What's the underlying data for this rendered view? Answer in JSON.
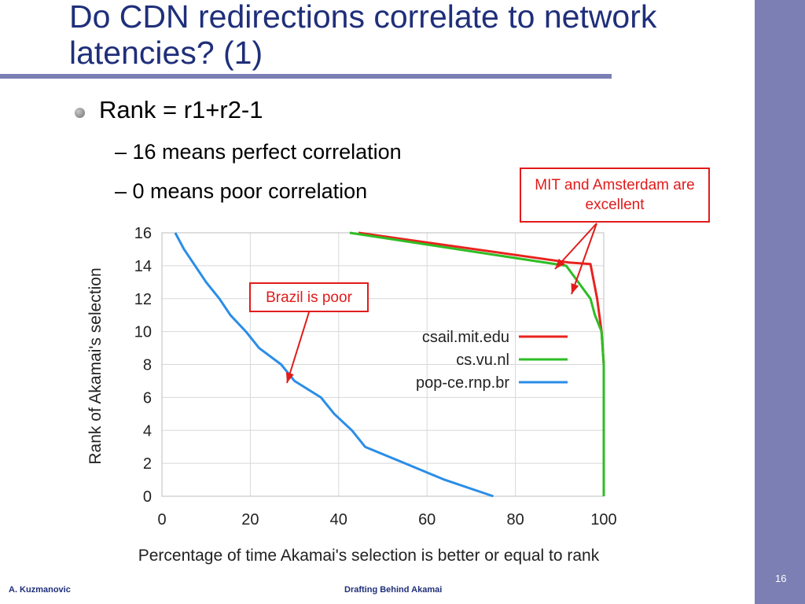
{
  "slide": {
    "title": "Do CDN redirections correlate to network latencies? (1)",
    "bullets": [
      {
        "text": "Rank = r1+r2-1"
      },
      {
        "text": "– 16 means perfect correlation"
      },
      {
        "text": "– 0 means poor correlation"
      }
    ],
    "callouts": [
      {
        "text": "MIT and Amsterdam are excellent"
      },
      {
        "text": "Brazil is poor"
      }
    ],
    "footer_left": "A. Kuzmanovic",
    "footer_center": "Drafting Behind Akamai",
    "page_number": "16"
  },
  "colors": {
    "title": "#1f2f7a",
    "accent_bar": "#7b7fb4",
    "callout": "#e11b1b"
  },
  "chart_data": {
    "type": "line",
    "title": "",
    "xlabel": "Percentage of time Akamai's selection is better or equal to rank",
    "ylabel": "Rank of Akamai's selection",
    "xlim": [
      0,
      100
    ],
    "ylim": [
      0,
      16
    ],
    "xticks": [
      0,
      20,
      40,
      60,
      80,
      100
    ],
    "yticks": [
      0,
      2,
      4,
      6,
      8,
      10,
      12,
      14,
      16
    ],
    "legend_position": "right",
    "series": [
      {
        "name": "csail.mit.edu",
        "color": "#e8231e",
        "points": [
          [
            44.5,
            16
          ],
          [
            92,
            14.2
          ],
          [
            97,
            14.1
          ],
          [
            98.5,
            12
          ],
          [
            99.5,
            10
          ],
          [
            100,
            8
          ],
          [
            100,
            4
          ],
          [
            100,
            0
          ]
        ]
      },
      {
        "name": "cs.vu.nl",
        "color": "#2ebd25",
        "points": [
          [
            42.5,
            16
          ],
          [
            91.5,
            14
          ],
          [
            97,
            12
          ],
          [
            98,
            11
          ],
          [
            99.5,
            10
          ],
          [
            100,
            8
          ],
          [
            100,
            4
          ],
          [
            100,
            0
          ]
        ]
      },
      {
        "name": "pop-ce.rnp.br",
        "color": "#2a8de8",
        "points": [
          [
            3,
            16
          ],
          [
            5,
            15
          ],
          [
            7.5,
            14
          ],
          [
            10,
            13
          ],
          [
            13,
            12
          ],
          [
            15.5,
            11
          ],
          [
            19,
            10
          ],
          [
            22,
            9
          ],
          [
            27,
            8
          ],
          [
            30,
            7
          ],
          [
            36,
            6
          ],
          [
            39,
            5
          ],
          [
            43,
            4
          ],
          [
            46,
            3
          ],
          [
            55,
            2
          ],
          [
            64,
            1
          ],
          [
            75,
            0
          ]
        ]
      }
    ]
  }
}
